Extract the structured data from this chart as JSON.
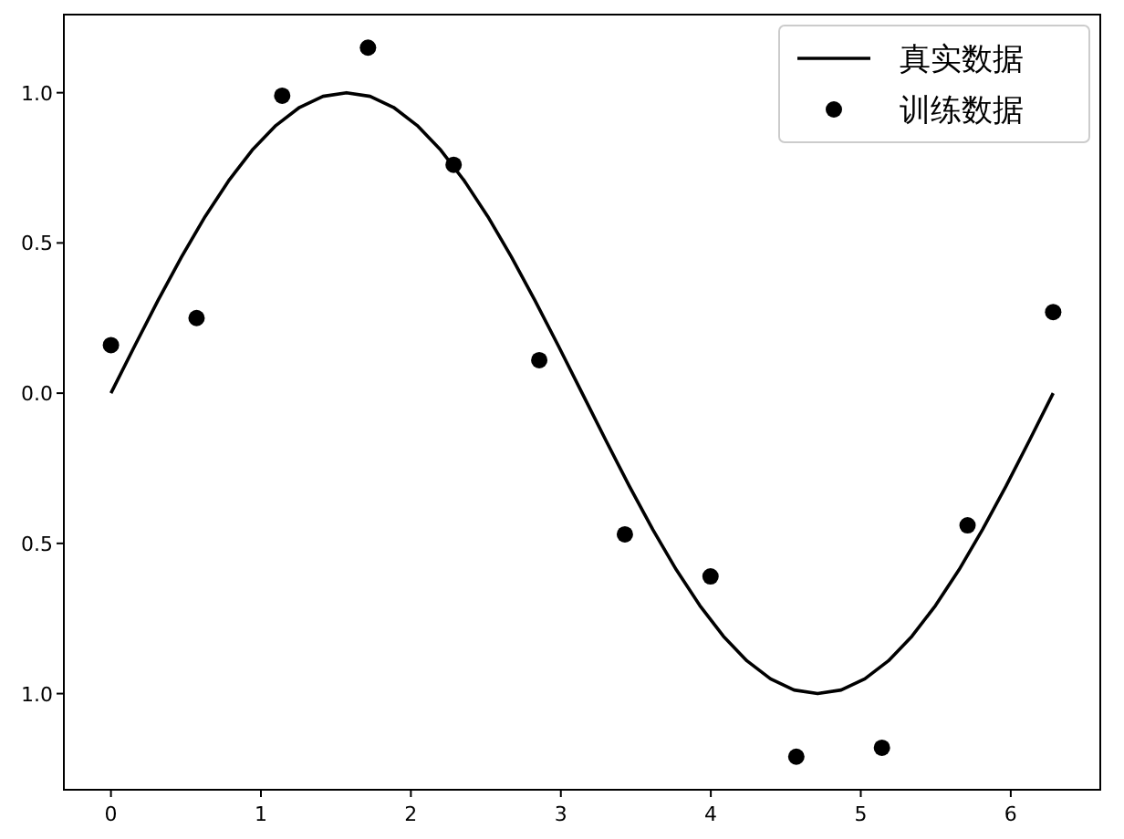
{
  "chart_data": {
    "type": "line",
    "xlim": [
      -0.314,
      6.597
    ],
    "ylim": [
      -1.32,
      1.26
    ],
    "xticks": [
      0,
      1,
      2,
      3,
      4,
      5,
      6
    ],
    "yticks": [
      {
        "value": -1.0,
        "label": "1.0"
      },
      {
        "value": -0.5,
        "label": "0.5"
      },
      {
        "value": 0.0,
        "label": "0.0"
      },
      {
        "value": 0.5,
        "label": "0.5"
      },
      {
        "value": 1.0,
        "label": "1.0"
      }
    ],
    "grid": false,
    "legend": "top right",
    "series": [
      {
        "name": "真实数据",
        "color": "#000000",
        "line_style": "solid",
        "x": [
          0,
          0.157,
          0.314,
          0.471,
          0.628,
          0.785,
          0.942,
          1.1,
          1.257,
          1.414,
          1.571,
          1.728,
          1.885,
          2.042,
          2.199,
          2.356,
          2.513,
          2.67,
          2.827,
          2.985,
          3.142,
          3.299,
          3.456,
          3.613,
          3.77,
          3.927,
          4.084,
          4.241,
          4.398,
          4.555,
          4.712,
          4.869,
          5.027,
          5.184,
          5.341,
          5.498,
          5.655,
          5.812,
          5.969,
          6.126,
          6.283
        ],
        "values": [
          0,
          0.156,
          0.309,
          0.454,
          0.588,
          0.707,
          0.809,
          0.891,
          0.951,
          0.988,
          1,
          0.988,
          0.951,
          0.891,
          0.809,
          0.707,
          0.588,
          0.454,
          0.309,
          0.156,
          0,
          -0.156,
          -0.309,
          -0.454,
          -0.588,
          -0.707,
          -0.809,
          -0.891,
          -0.951,
          -0.988,
          -1,
          -0.988,
          -0.951,
          -0.891,
          -0.809,
          -0.707,
          -0.588,
          -0.454,
          -0.309,
          -0.156,
          0
        ]
      },
      {
        "name": "训练数据",
        "type": "scatter",
        "color": "#000000",
        "marker": "circle",
        "x": [
          0,
          0.571,
          1.142,
          1.714,
          2.285,
          2.856,
          3.427,
          3.998,
          4.57,
          5.141,
          5.712,
          6.283
        ],
        "values": [
          0.16,
          0.25,
          0.99,
          1.15,
          0.76,
          0.11,
          -0.47,
          -0.61,
          -1.21,
          -1.18,
          -0.44,
          0.27
        ]
      }
    ]
  }
}
